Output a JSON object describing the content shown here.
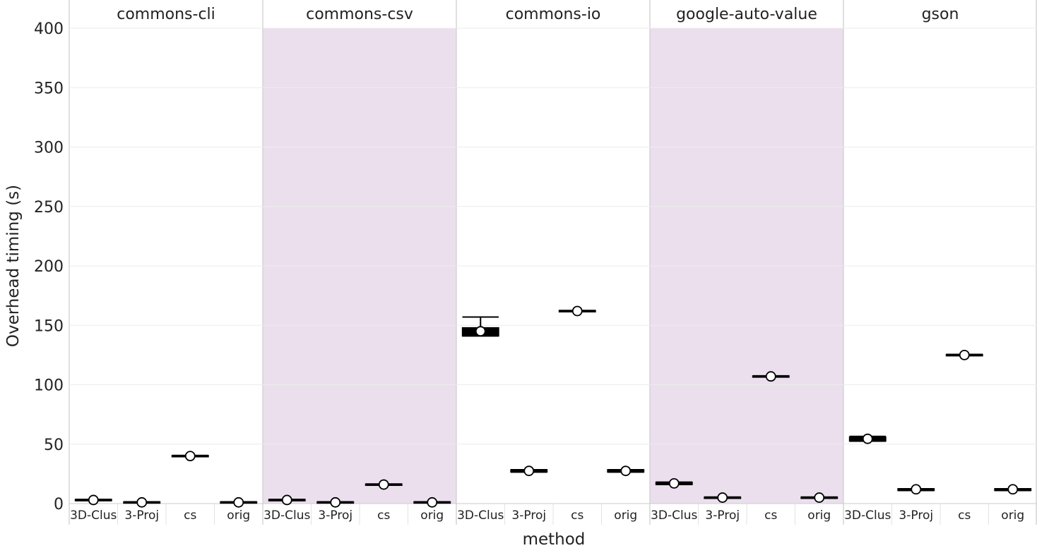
{
  "chart_data": {
    "type": "boxplot",
    "title": "",
    "xlabel": "method",
    "ylabel": "Overhead timing (s)",
    "ylim": [
      0,
      400
    ],
    "yticks": [
      0,
      50,
      100,
      150,
      200,
      250,
      300,
      350,
      400
    ],
    "grid": true,
    "categories": [
      "3D-Clus",
      "3-Proj",
      "cs",
      "orig"
    ],
    "facets": [
      {
        "name": "commons-cli",
        "shaded": false,
        "boxes": [
          {
            "method": "3D-Clus",
            "q1": 2.5,
            "median": 3,
            "q3": 3.5,
            "whisker_low": 2.5,
            "whisker_high": 3.5,
            "mean": 3
          },
          {
            "method": "3-Proj",
            "q1": 1,
            "median": 1,
            "q3": 1.5,
            "whisker_low": 1,
            "whisker_high": 1.5,
            "mean": 1
          },
          {
            "method": "cs",
            "q1": 39.5,
            "median": 40,
            "q3": 40.5,
            "whisker_low": 39.5,
            "whisker_high": 40.5,
            "mean": 40
          },
          {
            "method": "orig",
            "q1": 1,
            "median": 1,
            "q3": 1.5,
            "whisker_low": 1,
            "whisker_high": 1.5,
            "mean": 1
          }
        ]
      },
      {
        "name": "commons-csv",
        "shaded": true,
        "boxes": [
          {
            "method": "3D-Clus",
            "q1": 2.5,
            "median": 3,
            "q3": 3.5,
            "whisker_low": 2.5,
            "whisker_high": 3.5,
            "mean": 3
          },
          {
            "method": "3-Proj",
            "q1": 1,
            "median": 1,
            "q3": 1.5,
            "whisker_low": 1,
            "whisker_high": 1.5,
            "mean": 1
          },
          {
            "method": "cs",
            "q1": 15.5,
            "median": 16,
            "q3": 16.5,
            "whisker_low": 15.5,
            "whisker_high": 16.5,
            "mean": 16
          },
          {
            "method": "orig",
            "q1": 1,
            "median": 1,
            "q3": 1.5,
            "whisker_low": 1,
            "whisker_high": 1.5,
            "mean": 1
          }
        ]
      },
      {
        "name": "commons-io",
        "shaded": false,
        "boxes": [
          {
            "method": "3D-Clus",
            "q1": 141,
            "median": 143,
            "q3": 148,
            "whisker_low": 141,
            "whisker_high": 157,
            "mean": 145
          },
          {
            "method": "3-Proj",
            "q1": 26.5,
            "median": 27.5,
            "q3": 28.5,
            "whisker_low": 26.5,
            "whisker_high": 28.5,
            "mean": 27.5
          },
          {
            "method": "cs",
            "q1": 161.5,
            "median": 162,
            "q3": 162.5,
            "whisker_low": 161.5,
            "whisker_high": 162.5,
            "mean": 162
          },
          {
            "method": "orig",
            "q1": 26.5,
            "median": 27.5,
            "q3": 28.5,
            "whisker_low": 26.5,
            "whisker_high": 28.5,
            "mean": 27.5
          }
        ]
      },
      {
        "name": "google-auto-value",
        "shaded": true,
        "boxes": [
          {
            "method": "3D-Clus",
            "q1": 16,
            "median": 17,
            "q3": 18,
            "whisker_low": 16,
            "whisker_high": 18,
            "mean": 17
          },
          {
            "method": "3-Proj",
            "q1": 4.5,
            "median": 5,
            "q3": 5.5,
            "whisker_low": 4.5,
            "whisker_high": 5.5,
            "mean": 5
          },
          {
            "method": "cs",
            "q1": 106.5,
            "median": 107,
            "q3": 107.5,
            "whisker_low": 106.5,
            "whisker_high": 107.5,
            "mean": 107
          },
          {
            "method": "orig",
            "q1": 4.5,
            "median": 5,
            "q3": 5.5,
            "whisker_low": 4.5,
            "whisker_high": 5.5,
            "mean": 5
          }
        ]
      },
      {
        "name": "gson",
        "shaded": false,
        "boxes": [
          {
            "method": "3D-Clus",
            "q1": 52.5,
            "median": 54,
            "q3": 56,
            "whisker_low": 52.5,
            "whisker_high": 56.5,
            "mean": 54.5
          },
          {
            "method": "3-Proj",
            "q1": 11,
            "median": 12,
            "q3": 12.5,
            "whisker_low": 11,
            "whisker_high": 12.5,
            "mean": 12
          },
          {
            "method": "cs",
            "q1": 124.5,
            "median": 125,
            "q3": 125.5,
            "whisker_low": 124.5,
            "whisker_high": 125.5,
            "mean": 125
          },
          {
            "method": "orig",
            "q1": 11,
            "median": 12,
            "q3": 12.5,
            "whisker_low": 11,
            "whisker_high": 12.5,
            "mean": 12
          }
        ]
      }
    ],
    "colors": {
      "shaded_facet": "#ebdfee",
      "box_fill": "#000000",
      "mean_marker_fill": "#ffffff",
      "grid": "#ececec",
      "facet_divider": "#cccccc"
    }
  }
}
